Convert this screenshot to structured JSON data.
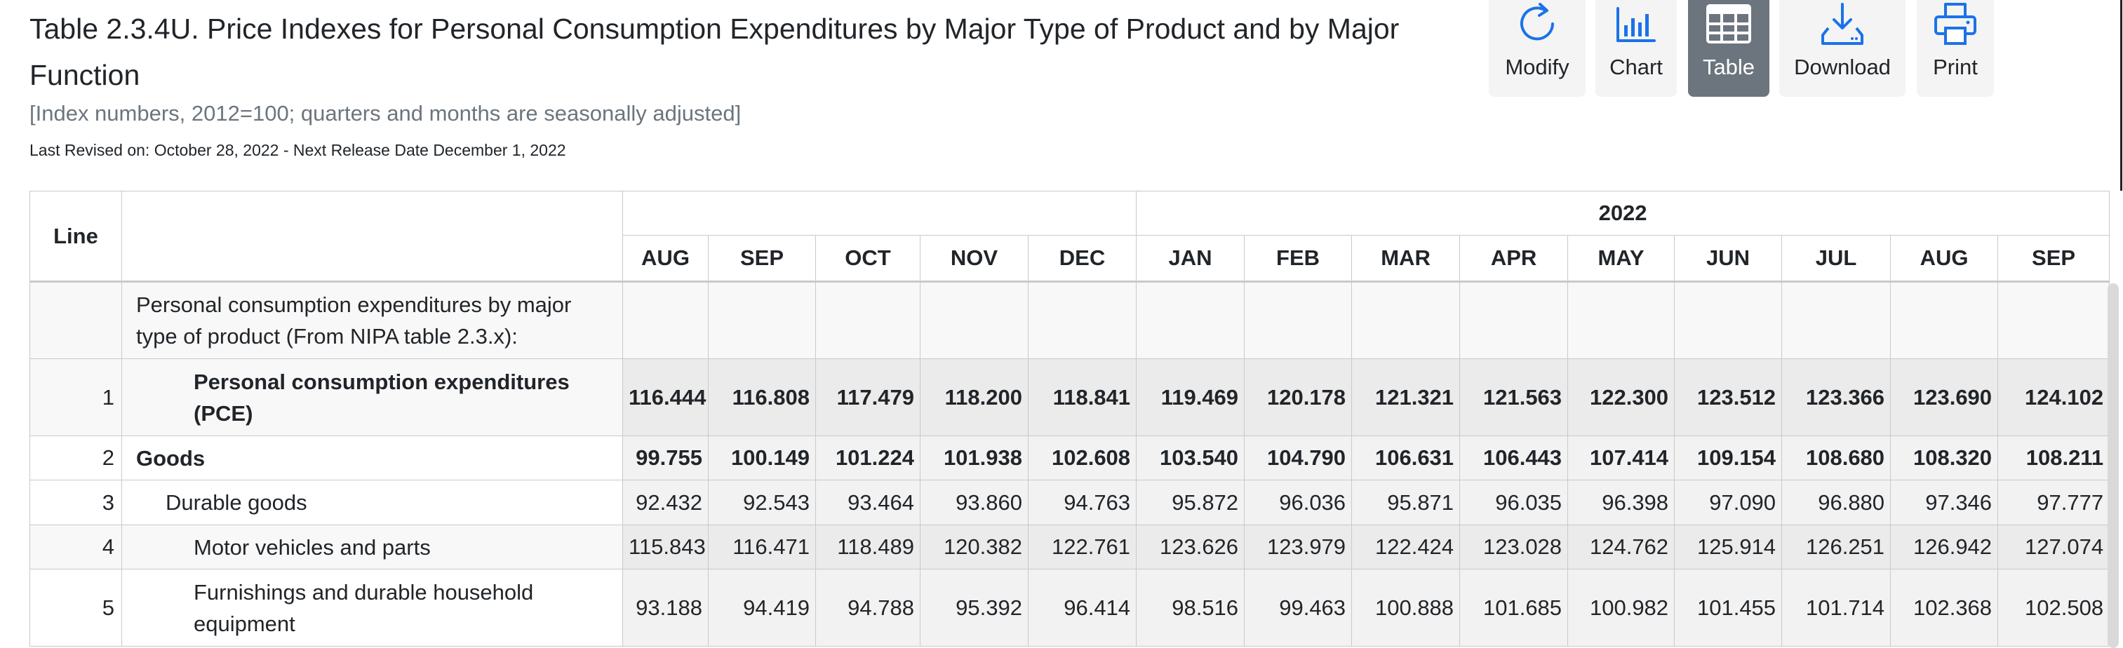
{
  "header": {
    "title": "Table 2.3.4U. Price Indexes for Personal Consumption Expenditures by Major Type of Product and by Major Function",
    "subtitle": "[Index numbers, 2012=100; quarters and months are seasonally adjusted]",
    "revised": "Last Revised on: October 28, 2022 - Next Release Date December 1, 2022"
  },
  "toolbar": {
    "modify": "Modify",
    "chart": "Chart",
    "table": "Table",
    "download": "Download",
    "print": "Print",
    "active": "table",
    "accent": "#1a73e8",
    "active_bg": "#6c757d"
  },
  "table": {
    "line_header": "Line",
    "year_label": "2022",
    "months_prev": [
      "AUG",
      "SEP",
      "OCT",
      "NOV",
      "DEC"
    ],
    "months_2022": [
      "JAN",
      "FEB",
      "MAR",
      "APR",
      "MAY",
      "JUN",
      "JUL",
      "AUG",
      "SEP"
    ],
    "section_label": "Personal consumption expenditures by major type of product (From NIPA table 2.3.x):",
    "rows": [
      {
        "line": "1",
        "label": "Personal consumption expenditures (PCE)",
        "values": [
          "116.444",
          "116.808",
          "117.479",
          "118.200",
          "118.841",
          "119.469",
          "120.178",
          "121.321",
          "121.563",
          "122.300",
          "123.512",
          "123.366",
          "123.690",
          "124.102"
        ]
      },
      {
        "line": "2",
        "label": "Goods",
        "values": [
          "99.755",
          "100.149",
          "101.224",
          "101.938",
          "102.608",
          "103.540",
          "104.790",
          "106.631",
          "106.443",
          "107.414",
          "109.154",
          "108.680",
          "108.320",
          "108.211"
        ]
      },
      {
        "line": "3",
        "label": "Durable goods",
        "values": [
          "92.432",
          "92.543",
          "93.464",
          "93.860",
          "94.763",
          "95.872",
          "96.036",
          "95.871",
          "96.035",
          "96.398",
          "97.090",
          "96.880",
          "97.346",
          "97.777"
        ]
      },
      {
        "line": "4",
        "label": "Motor vehicles and parts",
        "values": [
          "115.843",
          "116.471",
          "118.489",
          "120.382",
          "122.761",
          "123.626",
          "123.979",
          "122.424",
          "123.028",
          "124.762",
          "125.914",
          "126.251",
          "126.942",
          "127.074"
        ]
      },
      {
        "line": "5",
        "label": "Furnishings and durable household equipment",
        "values": [
          "93.188",
          "94.419",
          "94.788",
          "95.392",
          "96.414",
          "98.516",
          "99.463",
          "100.888",
          "101.685",
          "100.982",
          "101.455",
          "101.714",
          "102.368",
          "102.508"
        ]
      }
    ]
  }
}
